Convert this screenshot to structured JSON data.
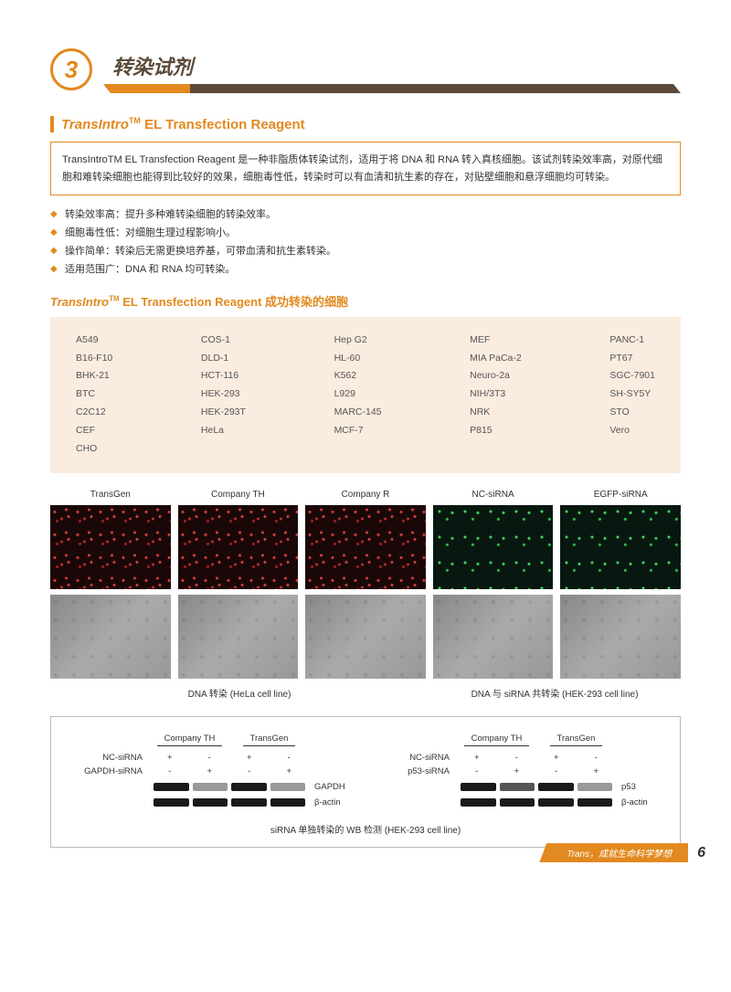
{
  "section": {
    "number": "3",
    "title": "转染试剂"
  },
  "product": {
    "prefix": "TransIntro",
    "tm": "TM",
    "suffix": " EL Transfection Reagent"
  },
  "description": "TransIntroTM EL Transfection Reagent 是一种非脂质体转染试剂，适用于将 DNA 和 RNA 转入真核细胞。该试剂转染效率高，对原代细胞和难转染细胞也能得到比较好的效果，细胞毒性低，转染时可以有血清和抗生素的存在，对贴壁细胞和悬浮细胞均可转染。",
  "bullets": [
    "转染效率高：提升多种难转染细胞的转染效率。",
    "细胞毒性低：对细胞生理过程影响小。",
    "操作简单：转染后无需更换培养基，可带血清和抗生素转染。",
    "适用范围广：DNA 和 RNA 均可转染。"
  ],
  "cellsHeading": {
    "prefix": "TransIntro",
    "tm": "TM",
    "suffix": " EL Transfection Reagent ",
    "cn": "成功转染的细胞"
  },
  "cellCols": [
    [
      "A549",
      "B16-F10",
      "BHK-21",
      "BTC",
      "C2C12",
      "CEF",
      "CHO"
    ],
    [
      "COS-1",
      "DLD-1",
      "HCT-116",
      "HEK-293",
      "HEK-293T",
      "HeLa"
    ],
    [
      "Hep G2",
      "HL-60",
      "K562",
      "L929",
      "MARC-145",
      "MCF-7"
    ],
    [
      "MEF",
      "MIA PaCa-2",
      "Neuro-2a",
      "NIH/3T3",
      "NRK",
      "P815"
    ],
    [
      "PANC-1",
      "PT67",
      "SGC-7901",
      "SH-SY5Y",
      "STO",
      "Vero"
    ]
  ],
  "imgLabels": [
    "TransGen",
    "Company TH",
    "Company R",
    "NC-siRNA",
    "EGFP-siRNA"
  ],
  "imgCaptions": {
    "left": "DNA 转染 (HeLa cell line)",
    "right": "DNA 与 siRNA 共转染 (HEK-293 cell line)"
  },
  "wb": {
    "groups": [
      "Company TH",
      "TransGen"
    ],
    "left": {
      "rows": [
        {
          "label": "NC-siRNA",
          "vals": [
            "+",
            "-",
            "+",
            "-"
          ]
        },
        {
          "label": "GAPDH-siRNA",
          "vals": [
            "-",
            "+",
            "-",
            "+"
          ]
        }
      ],
      "bands": [
        {
          "target": "GAPDH",
          "int": [
            "s",
            "w",
            "s",
            "w"
          ]
        },
        {
          "target": "β-actin",
          "int": [
            "s",
            "s",
            "s",
            "s"
          ]
        }
      ]
    },
    "right": {
      "rows": [
        {
          "label": "NC-siRNA",
          "vals": [
            "+",
            "-",
            "+",
            "-"
          ]
        },
        {
          "label": "p53-siRNA",
          "vals": [
            "-",
            "+",
            "-",
            "+"
          ]
        }
      ],
      "bands": [
        {
          "target": "p53",
          "int": [
            "s",
            "m",
            "s",
            "w"
          ]
        },
        {
          "target": "β-actin",
          "int": [
            "s",
            "s",
            "s",
            "s"
          ]
        }
      ]
    },
    "caption": "siRNA 单独转染的 WB 检测 (HEK-293 cell line)"
  },
  "footer": {
    "text": "Trans，成就生命科学梦想",
    "page": "6"
  }
}
